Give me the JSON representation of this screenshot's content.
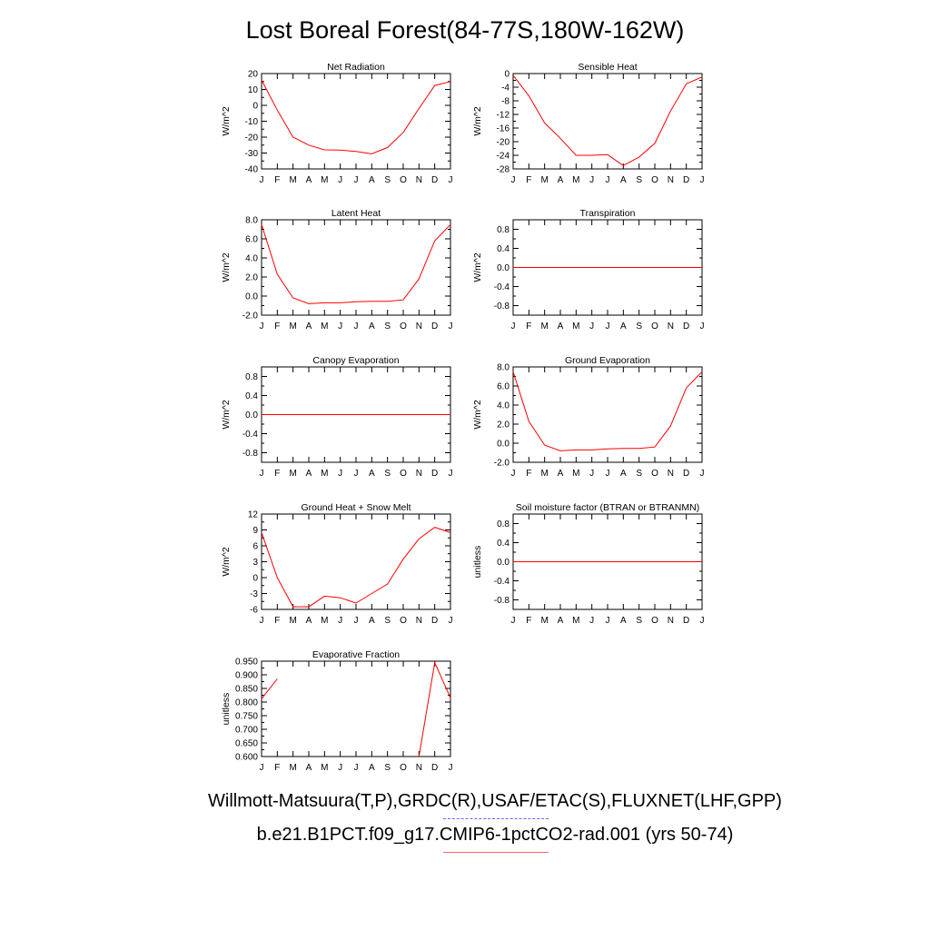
{
  "page": {
    "title": "Lost Boreal Forest(84-77S,180W-162W)",
    "footer_line1": "Willmott-Matsuura(T,P),GRDC(R),USAF/ETAC(S),FLUXNET(LHF,GPP)",
    "footer_line2": "b.e21.B1PCT.f09_g17.CMIP6-1pctCO2-rad.001 (yrs 50-74)",
    "colors": {
      "line": "#ff0000",
      "axis": "#000000",
      "obs_legend": "#6666ff",
      "model_legend": "#ff6666"
    }
  },
  "chart_data": [
    {
      "type": "line",
      "title": "Net Radiation",
      "ylabel": "W/m^2",
      "x": [
        "J",
        "F",
        "M",
        "A",
        "M",
        "J",
        "J",
        "A",
        "S",
        "O",
        "N",
        "D",
        "J"
      ],
      "ylim": [
        -40,
        20
      ],
      "yticks": [
        20,
        10,
        0,
        -10,
        -20,
        -30,
        -40
      ],
      "ytick_labels": [
        "20",
        "10",
        "0",
        "-10",
        "-20",
        "-30",
        "-40"
      ],
      "values": [
        16,
        -3,
        -20,
        -25,
        -28,
        -28.2,
        -29,
        -30.5,
        -26.5,
        -17,
        -2,
        12.5,
        15
      ]
    },
    {
      "type": "line",
      "title": "Sensible Heat",
      "ylabel": "W/m^2",
      "x": [
        "J",
        "F",
        "M",
        "A",
        "M",
        "J",
        "J",
        "A",
        "S",
        "O",
        "N",
        "D",
        "J"
      ],
      "ylim": [
        -28,
        0
      ],
      "yticks": [
        0,
        -4,
        -8,
        -12,
        -16,
        -20,
        -24,
        -28
      ],
      "ytick_labels": [
        "0",
        "-4",
        "-8",
        "-12",
        "-16",
        "-20",
        "-24",
        "-28"
      ],
      "values": [
        -0.5,
        -6.5,
        -14.5,
        -19,
        -24,
        -24,
        -23.8,
        -27,
        -24.5,
        -20.5,
        -11,
        -3,
        -1
      ]
    },
    {
      "type": "line",
      "title": "Latent Heat",
      "ylabel": "W/m^2",
      "x": [
        "J",
        "F",
        "M",
        "A",
        "M",
        "J",
        "J",
        "A",
        "S",
        "O",
        "N",
        "D",
        "J"
      ],
      "ylim": [
        -2,
        8
      ],
      "yticks": [
        8,
        6,
        4,
        2,
        0,
        -2
      ],
      "ytick_labels": [
        "8.0",
        "6.0",
        "4.0",
        "2.0",
        "0.0",
        "-2.0"
      ],
      "values": [
        7.5,
        2.3,
        -0.2,
        -0.8,
        -0.7,
        -0.7,
        -0.6,
        -0.55,
        -0.55,
        -0.4,
        1.8,
        5.8,
        7.5
      ]
    },
    {
      "type": "line",
      "title": "Transpiration",
      "ylabel": "W/m^2",
      "x": [
        "J",
        "F",
        "M",
        "A",
        "M",
        "J",
        "J",
        "A",
        "S",
        "O",
        "N",
        "D",
        "J"
      ],
      "ylim": [
        -1,
        1
      ],
      "yticks": [
        0.8,
        0.4,
        0.0,
        -0.4,
        -0.8
      ],
      "ytick_labels": [
        "0.8",
        "0.4",
        "0.0",
        "-0.4",
        "-0.8"
      ],
      "values": [
        0,
        0,
        0,
        0,
        0,
        0,
        0,
        0,
        0,
        0,
        0,
        0,
        0
      ]
    },
    {
      "type": "line",
      "title": "Canopy Evaporation",
      "ylabel": "W/m^2",
      "x": [
        "J",
        "F",
        "M",
        "A",
        "M",
        "J",
        "J",
        "A",
        "S",
        "O",
        "N",
        "D",
        "J"
      ],
      "ylim": [
        -1,
        1
      ],
      "yticks": [
        0.8,
        0.4,
        0.0,
        -0.4,
        -0.8
      ],
      "ytick_labels": [
        "0.8",
        "0.4",
        "0.0",
        "-0.4",
        "-0.8"
      ],
      "values": [
        0,
        0,
        0,
        0,
        0,
        0,
        0,
        0,
        0,
        0,
        0,
        0,
        0
      ]
    },
    {
      "type": "line",
      "title": "Ground Evaporation",
      "ylabel": "W/m^2",
      "x": [
        "J",
        "F",
        "M",
        "A",
        "M",
        "J",
        "J",
        "A",
        "S",
        "O",
        "N",
        "D",
        "J"
      ],
      "ylim": [
        -2,
        8
      ],
      "yticks": [
        8,
        6,
        4,
        2,
        0,
        -2
      ],
      "ytick_labels": [
        "8.0",
        "6.0",
        "4.0",
        "2.0",
        "0.0",
        "-2.0"
      ],
      "values": [
        7.5,
        2.3,
        -0.2,
        -0.8,
        -0.7,
        -0.7,
        -0.6,
        -0.55,
        -0.55,
        -0.4,
        1.8,
        5.8,
        7.5
      ]
    },
    {
      "type": "line",
      "title": "Ground Heat + Snow Melt",
      "ylabel": "W/m^2",
      "x": [
        "J",
        "F",
        "M",
        "A",
        "M",
        "J",
        "J",
        "A",
        "S",
        "O",
        "N",
        "D",
        "J"
      ],
      "ylim": [
        -6,
        12
      ],
      "yticks": [
        12,
        9,
        6,
        3,
        0,
        -3,
        -6
      ],
      "ytick_labels": [
        "12",
        "9",
        "6",
        "3",
        "0",
        "-3",
        "-6"
      ],
      "values": [
        8.5,
        0,
        -5.5,
        -5.5,
        -3.5,
        -3.8,
        -4.8,
        -3,
        -1.2,
        3.5,
        7.3,
        9.5,
        8.5
      ]
    },
    {
      "type": "line",
      "title": "Soil moisture factor (BTRAN or BTRANMN)",
      "ylabel": "unitless",
      "x": [
        "J",
        "F",
        "M",
        "A",
        "M",
        "J",
        "J",
        "A",
        "S",
        "O",
        "N",
        "D",
        "J"
      ],
      "ylim": [
        -1,
        1
      ],
      "yticks": [
        0.8,
        0.4,
        0.0,
        -0.4,
        -0.8
      ],
      "ytick_labels": [
        "0.8",
        "0.4",
        "0.0",
        "-0.4",
        "-0.8"
      ],
      "values": [
        0,
        0,
        0,
        0,
        0,
        0,
        0,
        0,
        0,
        0,
        0,
        0,
        0
      ]
    },
    {
      "type": "line",
      "title": "Evaporative Fraction",
      "ylabel": "unitless",
      "x": [
        "J",
        "F",
        "M",
        "A",
        "M",
        "J",
        "J",
        "A",
        "S",
        "O",
        "N",
        "D",
        "J"
      ],
      "ylim": [
        0.6,
        0.95
      ],
      "yticks": [
        0.95,
        0.9,
        0.85,
        0.8,
        0.75,
        0.7,
        0.65,
        0.6
      ],
      "ytick_labels": [
        "0.950",
        "0.900",
        "0.850",
        "0.800",
        "0.750",
        "0.700",
        "0.650",
        "0.600"
      ],
      "values": [
        0.812,
        0.885,
        null,
        null,
        null,
        null,
        null,
        null,
        null,
        null,
        0.6,
        0.945,
        0.815
      ]
    }
  ]
}
